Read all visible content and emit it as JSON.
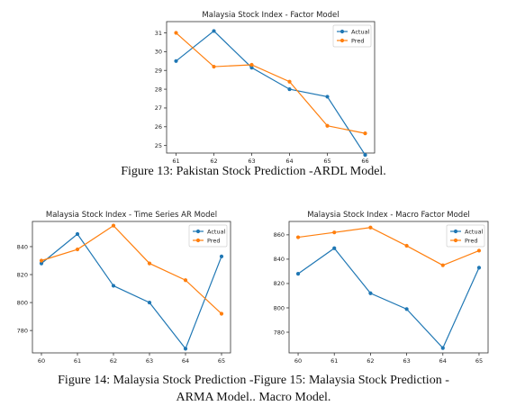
{
  "captions": {
    "fig13": "Figure 13: Pakistan Stock Prediction -ARDL Model.",
    "fig14_15_line1": "Figure 14: Malaysia Stock Prediction -Figure 15: Malaysia Stock Prediction -",
    "fig14_15_line2": "ARMA Model..    Macro Model."
  },
  "chart_data": [
    {
      "id": "factor",
      "type": "line",
      "title": "Malaysia Stock Index - Factor Model",
      "x": [
        61,
        62,
        63,
        64,
        65,
        66
      ],
      "xlim": [
        60.75,
        66.25
      ],
      "ylim": [
        24.6,
        31.6
      ],
      "yticks": [
        25,
        26,
        27,
        28,
        29,
        30,
        31
      ],
      "legend_position": "top-right",
      "grid": false,
      "series": [
        {
          "name": "Actual",
          "color": "#1f77b4",
          "values": [
            29.5,
            31.1,
            29.15,
            28.0,
            27.6,
            24.5
          ]
        },
        {
          "name": "Pred",
          "color": "#ff7f0e",
          "values": [
            31.0,
            29.2,
            29.3,
            28.4,
            26.05,
            25.65
          ]
        }
      ]
    },
    {
      "id": "ar",
      "type": "line",
      "title": "Malaysia Stock Index - Time Series AR Model",
      "x": [
        60,
        61,
        62,
        63,
        64,
        65
      ],
      "xlim": [
        59.75,
        65.25
      ],
      "ylim": [
        764,
        858
      ],
      "yticks": [
        780,
        800,
        820,
        840
      ],
      "legend_position": "top-right",
      "grid": false,
      "series": [
        {
          "name": "Actual",
          "color": "#1f77b4",
          "values": [
            828,
            849,
            812,
            800,
            767,
            833
          ]
        },
        {
          "name": "Pred",
          "color": "#ff7f0e",
          "values": [
            830,
            838,
            855,
            828,
            816,
            792
          ]
        }
      ]
    },
    {
      "id": "macro",
      "type": "line",
      "title": "Malaysia Stock Index - Macro Factor Model",
      "x": [
        60,
        61,
        62,
        63,
        64,
        65
      ],
      "xlim": [
        59.75,
        65.25
      ],
      "ylim": [
        763,
        871
      ],
      "yticks": [
        780,
        800,
        820,
        840,
        860
      ],
      "legend_position": "top-right",
      "grid": false,
      "series": [
        {
          "name": "Actual",
          "color": "#1f77b4",
          "values": [
            828,
            849,
            812,
            799,
            767,
            833
          ]
        },
        {
          "name": "Pred",
          "color": "#ff7f0e",
          "values": [
            858,
            862,
            866,
            851,
            835,
            847
          ]
        }
      ]
    }
  ]
}
